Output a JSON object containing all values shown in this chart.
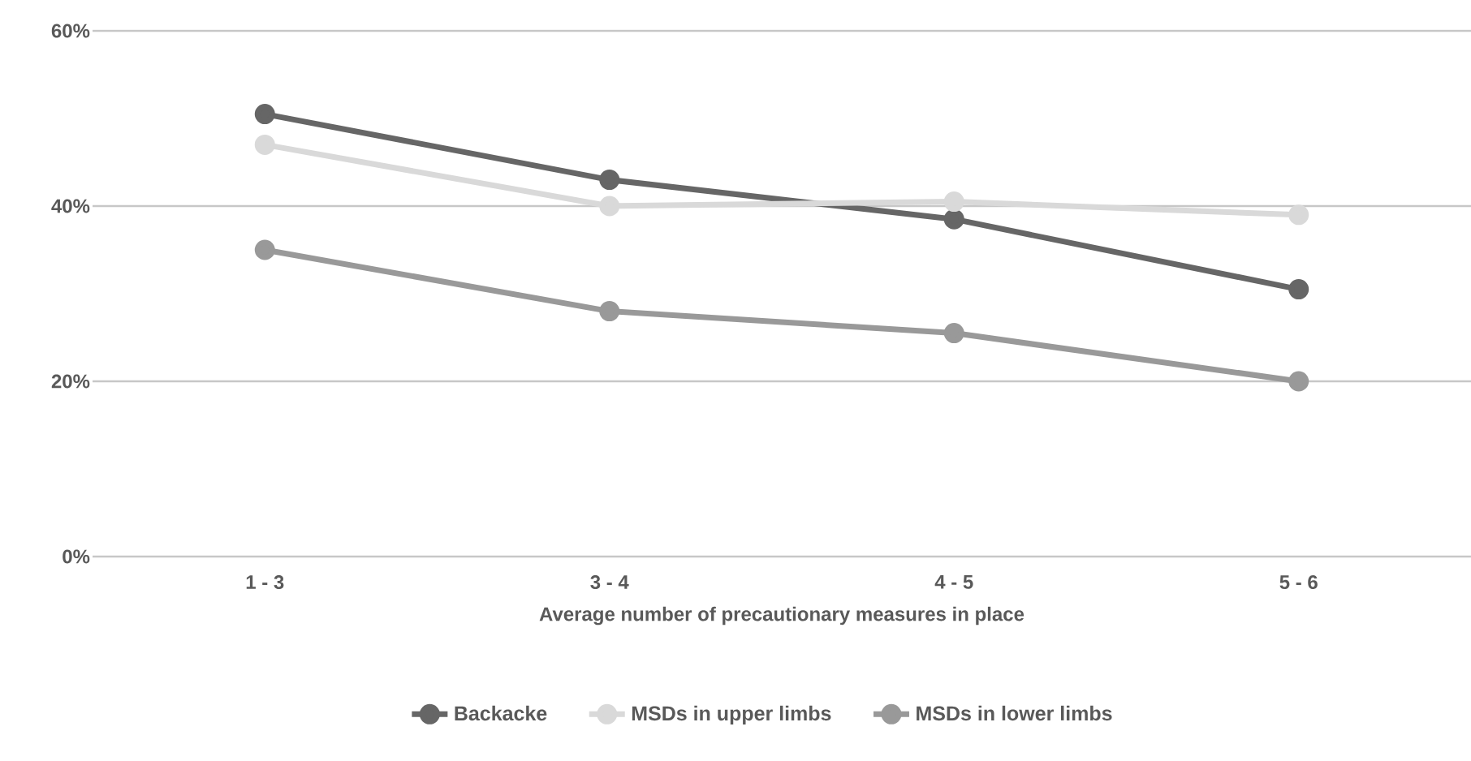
{
  "chart_data": {
    "type": "line",
    "xlabel": "Average number of precautionary measures in place",
    "categories": [
      "1 - 3",
      "3 - 4",
      "4 - 5",
      "5 - 6"
    ],
    "series": [
      {
        "name": "Backacke",
        "color": "#666666",
        "values": [
          50.5,
          43,
          38.5,
          30.5
        ]
      },
      {
        "name": "MSDs in upper limbs",
        "color": "#d9d9d9",
        "values": [
          47,
          40,
          40.5,
          39
        ]
      },
      {
        "name": "MSDs in lower limbs",
        "color": "#999999",
        "values": [
          35,
          28,
          25.5,
          20
        ]
      }
    ],
    "ylim": [
      0,
      60
    ],
    "yticks": [
      {
        "value": 0,
        "label": "0%"
      },
      {
        "value": 20,
        "label": "20%"
      },
      {
        "value": 40,
        "label": "40%"
      },
      {
        "value": 60,
        "label": "60%"
      }
    ],
    "grid": "y",
    "legend": "bottom",
    "marker": "circle",
    "line_style": "solid"
  }
}
